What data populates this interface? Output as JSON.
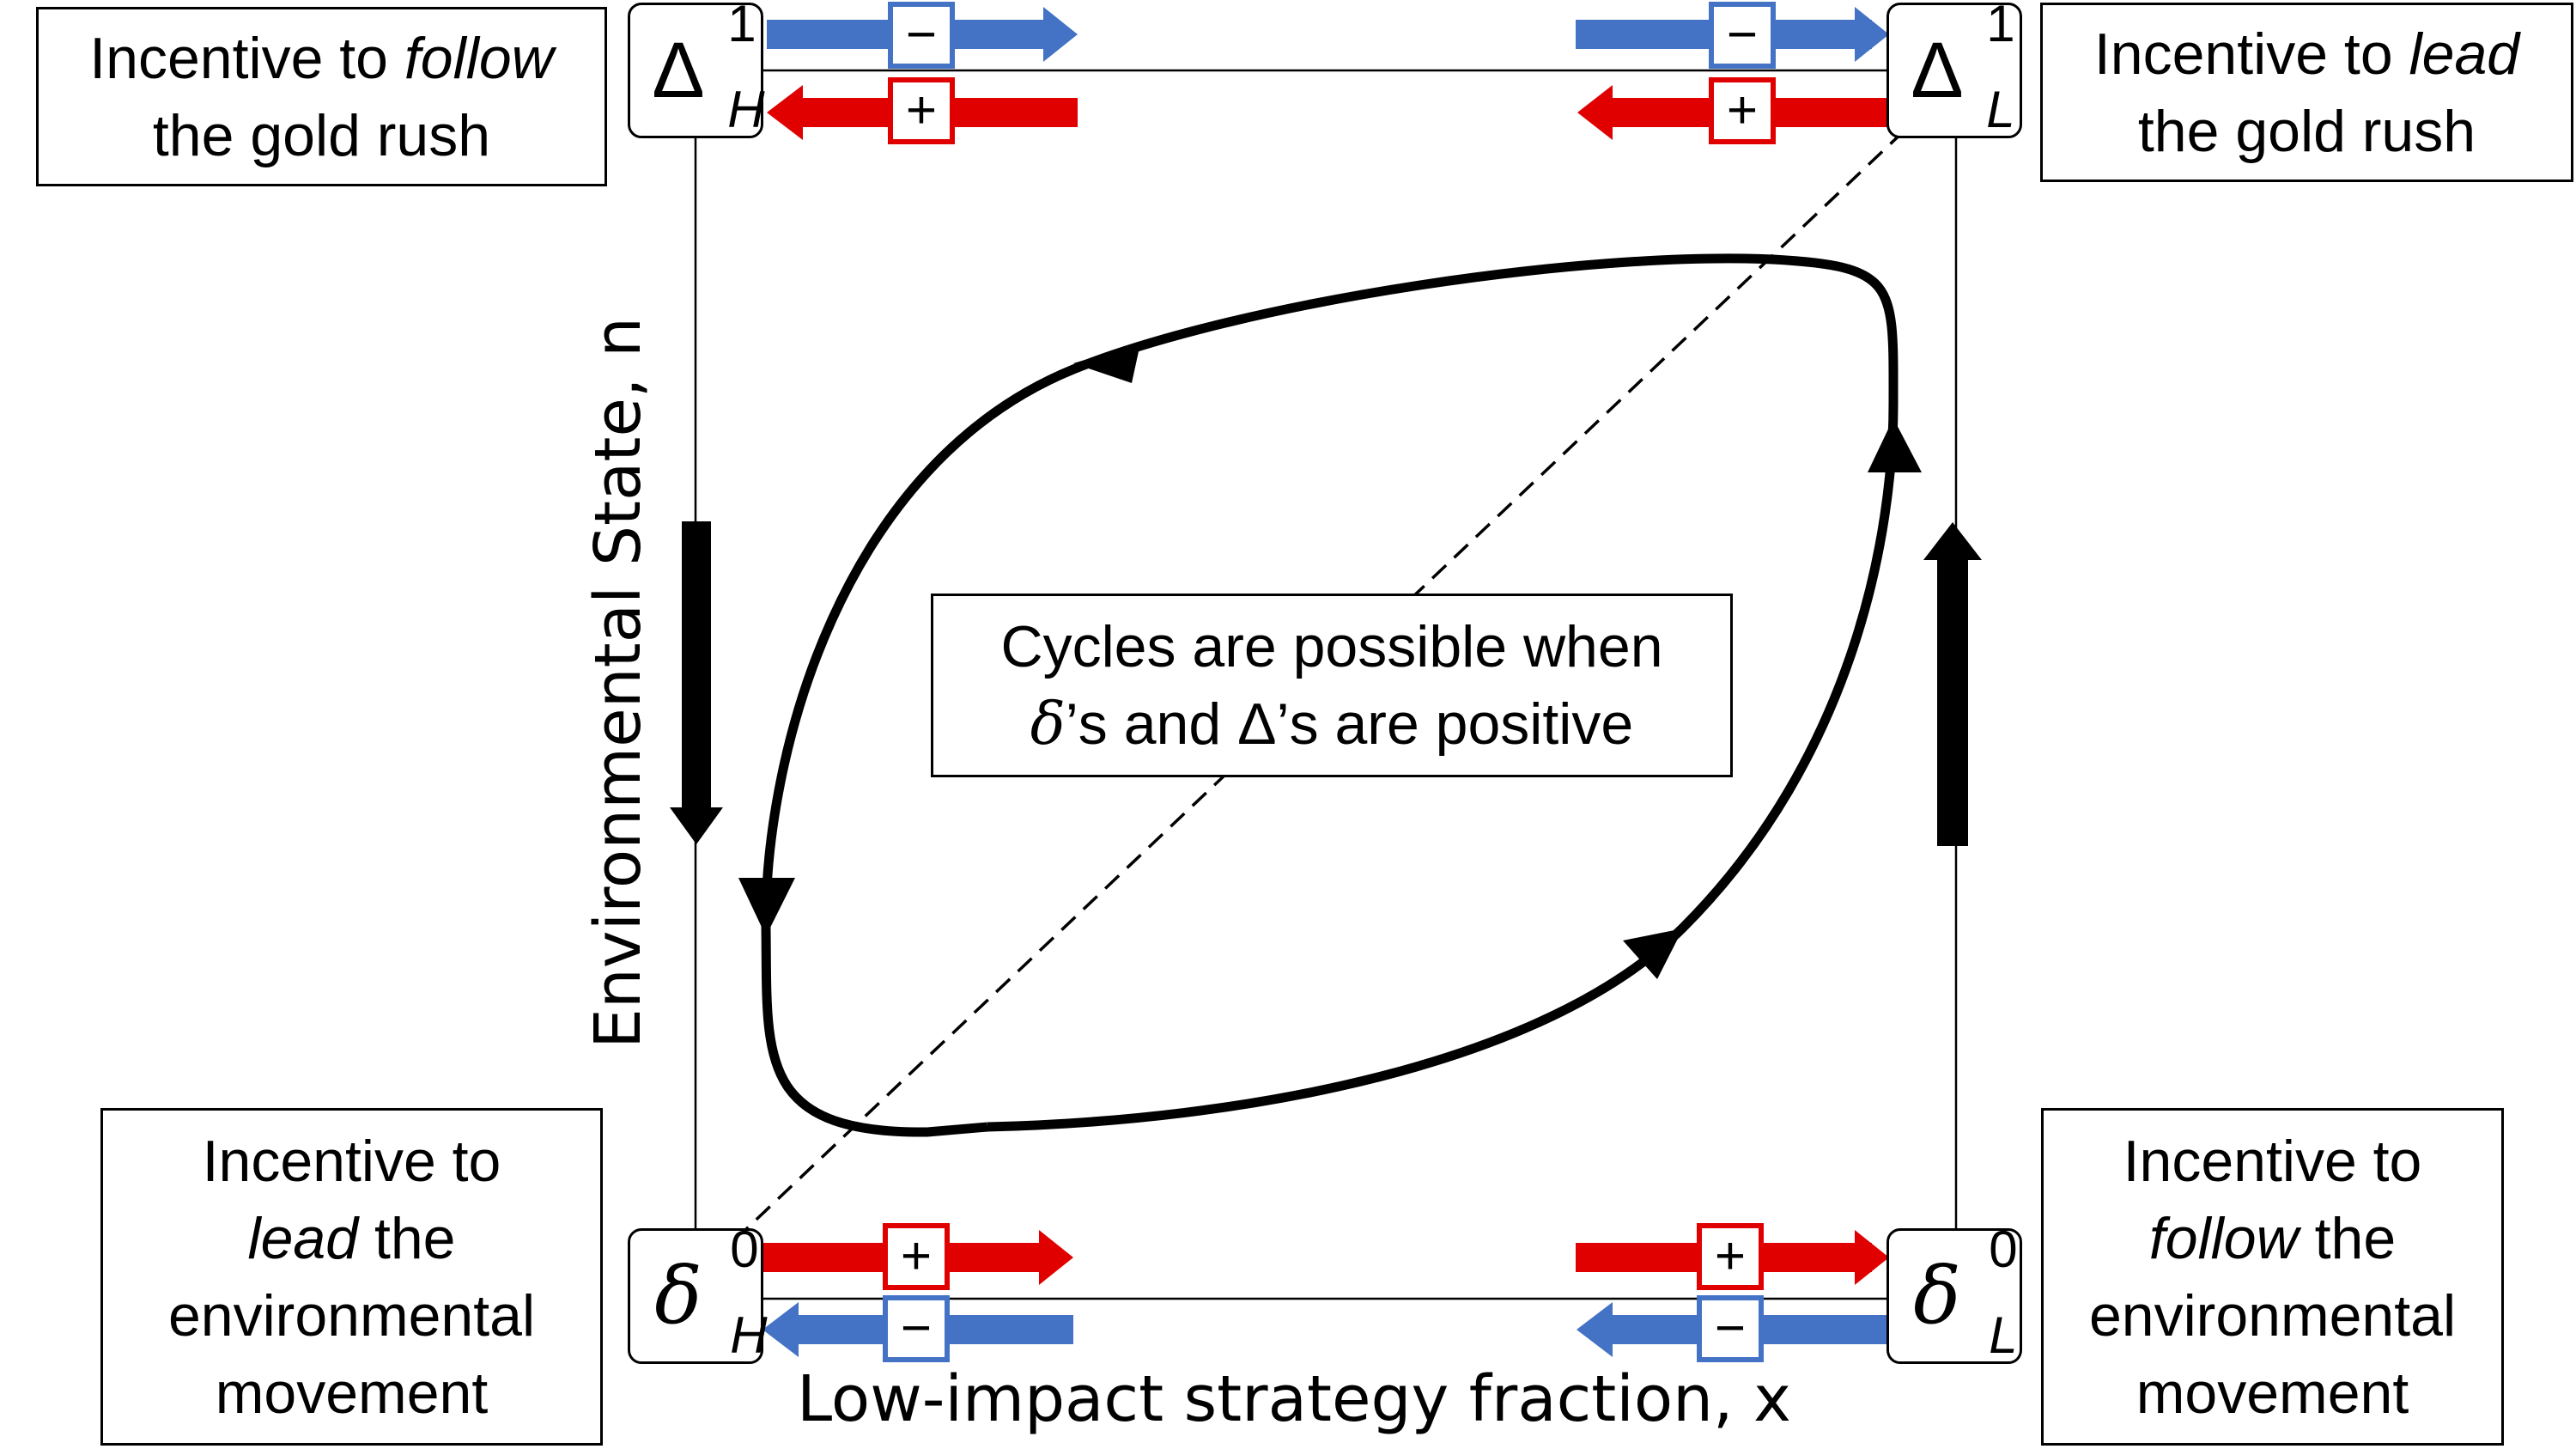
{
  "boxes": {
    "top_left": {
      "l1_pre": "Incentive to ",
      "l1_em": "follow",
      "l2": "the gold rush"
    },
    "top_right": {
      "l1_pre": "Incentive to ",
      "l1_em": "lead",
      "l2": "the gold rush"
    },
    "bottom_left": {
      "l1": "Incentive to",
      "l2_em": "lead",
      "l2_post": " the",
      "l3": "environmental",
      "l4": "movement"
    },
    "bottom_right": {
      "l1": "Incentive to",
      "l2_em": "follow",
      "l2_post": " the",
      "l3": "environmental",
      "l4": "movement"
    }
  },
  "corners": {
    "top_left": {
      "symbol": "Δ",
      "sup": "1",
      "sub": "H"
    },
    "top_right": {
      "symbol": "Δ",
      "sup": "1",
      "sub": "L"
    },
    "bottom_left": {
      "symbol": "δ",
      "sup": "0",
      "sub": "H"
    },
    "bottom_right": {
      "symbol": "δ",
      "sup": "0",
      "sub": "L"
    }
  },
  "signs": {
    "minus": "−",
    "plus": "+"
  },
  "center_note": {
    "line1": "Cycles are possible when",
    "delta_small": "δ",
    "line2_mid": "’s and ",
    "delta_big": "Δ",
    "line2_end": "’s are positive"
  },
  "axes": {
    "x_label": "Low-impact strategy fraction, x",
    "y_label": "Environmental State, n"
  },
  "colors": {
    "blue": "#4472c4",
    "red": "#e00000",
    "black": "#000000"
  }
}
